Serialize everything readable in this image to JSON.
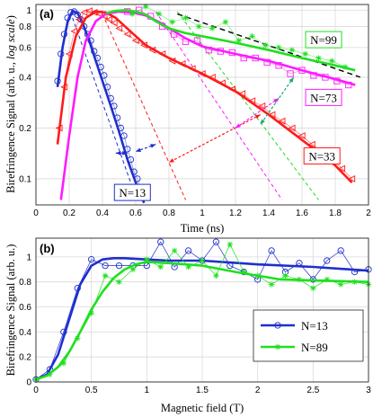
{
  "chart_data": [
    {
      "panel": "(a)",
      "type": "line",
      "xlabel": "Time (ns)",
      "ylabel_main": "Birefringence Signal (arb. u.,",
      "ylabel_italic": "log scale",
      "ylabel_close": ")",
      "xlim": [
        0,
        2
      ],
      "ylim": [
        0.07,
        1.08
      ],
      "yscale": "log",
      "xticks": [
        0,
        0.2,
        0.4,
        0.6,
        0.8,
        1,
        1.2,
        1.4,
        1.6,
        1.8,
        2
      ],
      "xtick_labels": [
        "0",
        "0.2",
        "0.4",
        "0.6",
        "0.8",
        "1",
        "1.2",
        "1.4",
        "1.6",
        "1.8",
        "2"
      ],
      "yticks": [
        0.1,
        0.2,
        0.4,
        0.6,
        0.8,
        1
      ],
      "ytick_labels": [
        "0.1",
        "0.2",
        "0.4",
        "0.6",
        "0.8",
        "1"
      ],
      "grid": true,
      "series": [
        {
          "name": "N=13",
          "color": "#1f2fcc",
          "marker": "circle",
          "fit_x": [
            0.13,
            0.16,
            0.19,
            0.22,
            0.25,
            0.28,
            0.32,
            0.36,
            0.4,
            0.45,
            0.5,
            0.55,
            0.6,
            0.65
          ],
          "fit_y": [
            0.35,
            0.6,
            0.85,
            0.99,
            0.96,
            0.84,
            0.66,
            0.5,
            0.38,
            0.27,
            0.19,
            0.13,
            0.095,
            0.072
          ],
          "data_x": [
            0.13,
            0.15,
            0.17,
            0.19,
            0.21,
            0.23,
            0.25,
            0.27,
            0.29,
            0.31,
            0.33,
            0.35,
            0.37,
            0.39,
            0.41,
            0.43,
            0.45,
            0.47,
            0.49,
            0.51,
            0.53,
            0.55,
            0.57,
            0.59,
            0.61,
            0.63
          ],
          "data_y": [
            0.38,
            0.55,
            0.72,
            0.9,
            0.97,
            0.98,
            0.94,
            0.88,
            0.8,
            0.72,
            0.66,
            0.57,
            0.52,
            0.46,
            0.41,
            0.35,
            0.3,
            0.27,
            0.23,
            0.2,
            0.18,
            0.15,
            0.13,
            0.11,
            0.1,
            0.085
          ]
        },
        {
          "name": "N=33",
          "color": "#ff1a1a",
          "marker": "triangle",
          "fit_x": [
            0.13,
            0.18,
            0.24,
            0.3,
            0.36,
            0.42,
            0.48,
            0.56,
            0.66,
            0.8,
            1.0,
            1.2,
            1.4,
            1.6,
            1.8,
            1.9
          ],
          "fit_y": [
            0.16,
            0.4,
            0.7,
            0.9,
            0.98,
            0.97,
            0.9,
            0.76,
            0.62,
            0.52,
            0.42,
            0.33,
            0.24,
            0.17,
            0.12,
            0.095
          ],
          "data_x": [
            0.14,
            0.17,
            0.2,
            0.23,
            0.26,
            0.29,
            0.32,
            0.35,
            0.38,
            0.41,
            0.44,
            0.47,
            0.5,
            0.55,
            0.6,
            0.65,
            0.7,
            0.76,
            0.82,
            0.88,
            0.94,
            1.0,
            1.06,
            1.12,
            1.18,
            1.24,
            1.3,
            1.36,
            1.42,
            1.48,
            1.54,
            1.6,
            1.66,
            1.72,
            1.78,
            1.84,
            1.9
          ],
          "data_y": [
            0.2,
            0.35,
            0.55,
            0.75,
            0.88,
            0.97,
            0.99,
            0.97,
            0.95,
            0.92,
            0.88,
            0.84,
            0.78,
            0.72,
            0.66,
            0.62,
            0.58,
            0.55,
            0.5,
            0.48,
            0.45,
            0.42,
            0.4,
            0.37,
            0.34,
            0.32,
            0.29,
            0.27,
            0.24,
            0.22,
            0.2,
            0.18,
            0.16,
            0.145,
            0.13,
            0.115,
            0.1
          ]
        },
        {
          "name": "N=73",
          "color": "#ff1aff",
          "marker": "square",
          "fit_x": [
            0.15,
            0.2,
            0.25,
            0.3,
            0.36,
            0.42,
            0.5,
            0.58,
            0.66,
            0.74,
            0.82,
            0.9,
            1.0,
            1.2,
            1.4,
            1.6,
            1.8,
            1.92
          ],
          "fit_y": [
            0.075,
            0.18,
            0.4,
            0.66,
            0.86,
            0.95,
            0.98,
            0.97,
            0.93,
            0.85,
            0.76,
            0.68,
            0.61,
            0.55,
            0.5,
            0.44,
            0.39,
            0.36
          ],
          "data_x": [
            0.55,
            0.62,
            0.69,
            0.76,
            0.83,
            0.9,
            0.97,
            1.04,
            1.11,
            1.18,
            1.25,
            1.32,
            1.39,
            1.46,
            1.53,
            1.6,
            1.67,
            1.74,
            1.81,
            1.88
          ],
          "data_y": [
            0.98,
            1.0,
            0.92,
            0.8,
            0.72,
            0.65,
            0.66,
            0.58,
            0.57,
            0.56,
            0.52,
            0.52,
            0.49,
            0.47,
            0.42,
            0.44,
            0.41,
            0.4,
            0.38,
            0.36
          ]
        },
        {
          "name": "N=99",
          "color": "#1ee01e",
          "marker": "asterisk",
          "fit_x": [
            0.42,
            0.48,
            0.54,
            0.6,
            0.66,
            0.72,
            0.8,
            0.9,
            1.0,
            1.2,
            1.4,
            1.6,
            1.8,
            1.92
          ],
          "fit_y": [
            0.96,
            0.99,
            1.0,
            0.98,
            0.94,
            0.86,
            0.78,
            0.73,
            0.7,
            0.64,
            0.58,
            0.52,
            0.47,
            0.44
          ],
          "data_x": [
            0.58,
            0.66,
            0.74,
            0.82,
            0.9,
            0.98,
            1.06,
            1.14,
            1.22,
            1.3,
            1.38,
            1.46,
            1.54,
            1.62,
            1.7,
            1.78,
            1.86
          ],
          "data_y": [
            0.95,
            1.05,
            0.95,
            0.85,
            0.9,
            0.8,
            0.78,
            0.85,
            0.66,
            0.7,
            0.62,
            0.6,
            0.58,
            0.55,
            0.52,
            0.5,
            0.46
          ]
        }
      ],
      "asymptote": {
        "color": "#000000",
        "x": [
          0.85,
          1.95
        ],
        "y": [
          0.95,
          0.4
        ]
      },
      "tangents": [
        {
          "color": "#1f2fcc",
          "x": [
            0.22,
            0.57
          ],
          "y": [
            0.9,
            0.095
          ]
        },
        {
          "color": "#ff1a1a",
          "x": [
            0.4,
            0.9
          ],
          "y": [
            0.95,
            0.075
          ]
        },
        {
          "color": "#ff1aff",
          "x": [
            0.72,
            1.48
          ],
          "y": [
            0.98,
            0.075
          ]
        },
        {
          "color": "#1ee01e",
          "x": [
            0.85,
            1.7
          ],
          "y": [
            0.98,
            0.075
          ]
        }
      ],
      "arrows": [
        {
          "color": "#1f2fcc",
          "x1": 0.48,
          "y1": 0.142,
          "x2": 0.55,
          "y2": 0.142
        },
        {
          "color": "#1f2fcc",
          "x1": 0.72,
          "y1": 0.16,
          "x2": 0.6,
          "y2": 0.145
        },
        {
          "color": "#ff1a1a",
          "x1": 1.35,
          "y1": 0.24,
          "x2": 0.8,
          "y2": 0.125
        },
        {
          "color": "#ff1aff",
          "x1": 1.46,
          "y1": 0.3,
          "x2": 1.2,
          "y2": 0.2
        },
        {
          "color": "#17a86e",
          "x1": 1.55,
          "y1": 0.4,
          "x2": 1.35,
          "y2": 0.21
        }
      ],
      "labels": [
        {
          "text": "N=13",
          "box_color": "#1f2fcc",
          "x": 0.58,
          "y": 0.082
        },
        {
          "text": "N=33",
          "box_color": "#ff1a1a",
          "x": 1.72,
          "y": 0.135
        },
        {
          "text": "N=73",
          "box_color": "#ff1aff",
          "x": 1.73,
          "y": 0.3
        },
        {
          "text": "N=99",
          "box_color": "#1ee01e",
          "x": 1.73,
          "y": 0.66
        }
      ]
    },
    {
      "panel": "(b)",
      "type": "line",
      "xlabel": "Magnetic field (T)",
      "ylabel": "Birefringence Signal (arb. u.)",
      "xlim": [
        0,
        3
      ],
      "ylim": [
        0,
        1.15
      ],
      "xticks": [
        0,
        0.5,
        1,
        1.5,
        2,
        2.5,
        3
      ],
      "xtick_labels": [
        "0",
        "0.5",
        "1",
        "1.5",
        "2",
        "2.5",
        "3"
      ],
      "yticks": [
        0,
        0.2,
        0.4,
        0.6,
        0.8,
        1
      ],
      "ytick_labels": [
        "0",
        "0.2",
        "0.4",
        "0.6",
        "0.8",
        "1"
      ],
      "grid": true,
      "legend_position": "lower-right",
      "series": [
        {
          "name": "N=13",
          "color": "#1f2fcc",
          "marker": "circle",
          "fit_x": [
            0,
            0.1,
            0.2,
            0.3,
            0.4,
            0.5,
            0.6,
            0.7,
            0.8,
            1.0,
            1.2,
            1.5,
            2.0,
            2.5,
            3.0
          ],
          "fit_y": [
            0.02,
            0.06,
            0.22,
            0.5,
            0.78,
            0.93,
            0.98,
            0.99,
            0.99,
            0.98,
            0.97,
            0.97,
            0.94,
            0.92,
            0.89
          ],
          "data_x": [
            0,
            0.125,
            0.25,
            0.375,
            0.5,
            0.625,
            0.75,
            0.875,
            1.0,
            1.125,
            1.25,
            1.375,
            1.5,
            1.625,
            1.75,
            1.875,
            2.0,
            2.125,
            2.25,
            2.375,
            2.5,
            2.625,
            2.75,
            2.875,
            3.0
          ],
          "data_y": [
            0.02,
            0.1,
            0.4,
            0.75,
            0.98,
            0.93,
            0.93,
            0.93,
            0.93,
            1.12,
            0.92,
            1.05,
            0.97,
            1.12,
            0.93,
            0.88,
            0.82,
            1.05,
            0.88,
            0.95,
            0.82,
            0.97,
            1.05,
            0.88,
            0.9
          ]
        },
        {
          "name": "N=89",
          "color": "#1ee01e",
          "marker": "asterisk",
          "fit_x": [
            0,
            0.1,
            0.2,
            0.3,
            0.4,
            0.5,
            0.6,
            0.7,
            0.8,
            0.9,
            1.0,
            1.2,
            1.5,
            1.8,
            2.2,
            2.6,
            3.0
          ],
          "fit_y": [
            0.02,
            0.05,
            0.12,
            0.24,
            0.4,
            0.58,
            0.72,
            0.83,
            0.9,
            0.94,
            0.96,
            0.95,
            0.93,
            0.88,
            0.82,
            0.81,
            0.8
          ],
          "data_x": [
            0,
            0.125,
            0.25,
            0.375,
            0.5,
            0.625,
            0.75,
            0.875,
            1.0,
            1.125,
            1.25,
            1.375,
            1.5,
            1.625,
            1.75,
            1.875,
            2.0,
            2.125,
            2.25,
            2.375,
            2.5,
            2.625,
            2.75,
            2.875,
            3.0
          ],
          "data_y": [
            0.02,
            0.06,
            0.15,
            0.35,
            0.55,
            0.85,
            0.8,
            0.9,
            0.98,
            0.92,
            1.05,
            0.92,
            0.97,
            0.85,
            1.1,
            0.88,
            0.85,
            0.78,
            0.85,
            0.82,
            0.75,
            0.82,
            0.78,
            0.8,
            0.78
          ]
        }
      ],
      "legend": [
        {
          "name": "N=13",
          "color": "#1f2fcc",
          "marker": "circle"
        },
        {
          "name": "N=89",
          "color": "#1ee01e",
          "marker": "asterisk"
        }
      ]
    }
  ]
}
